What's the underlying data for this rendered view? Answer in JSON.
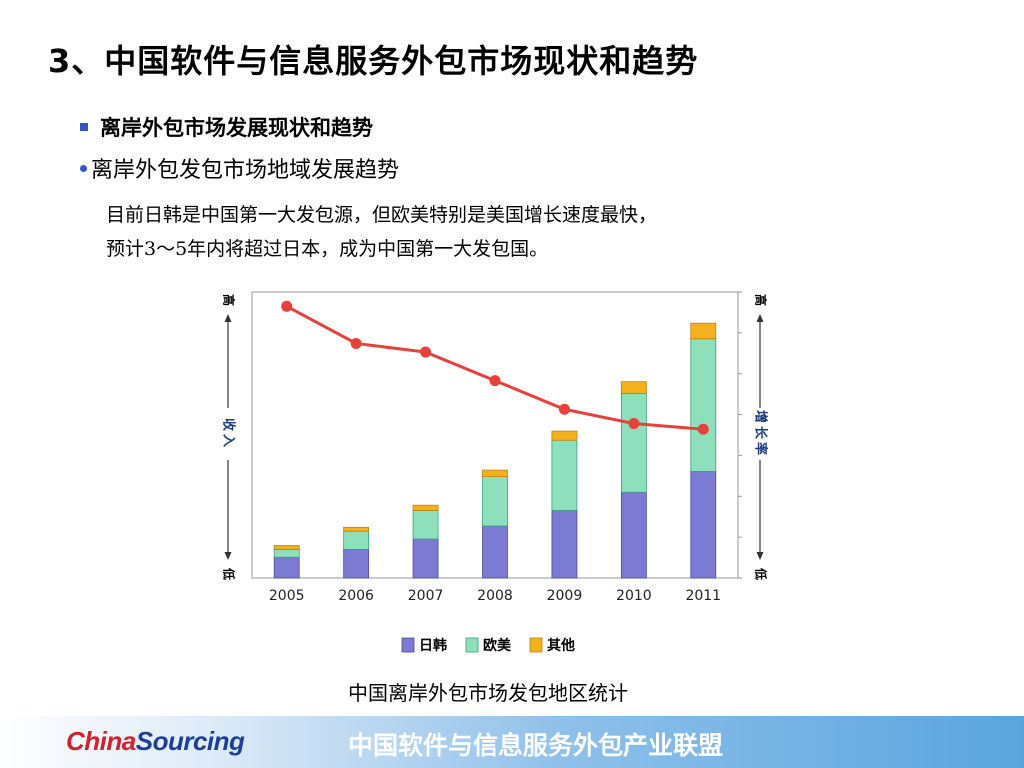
{
  "title": "3、中国软件与信息服务外包市场现状和趋势",
  "bullet1": "离岸外包市场发展现状和趋势",
  "bullet2": "离岸外包发包市场地域发展趋势",
  "description": [
    "目前日韩是中国第一大发包源，但欧美特别是美国增长速度最快，",
    "预计3～5年内将超过日本，成为中国第一大发包国。"
  ],
  "caption": "中国离岸外包市场发包地区统计",
  "footer": {
    "logo_part1": "China",
    "logo_part2": "Sourcing",
    "org_name": "中国软件与信息服务外包产业联盟"
  },
  "colors": {
    "japan_korea": "#7b7bd3",
    "europe_us": "#8ee0bd",
    "other": "#f5b01f",
    "growth_line": "#e8403a"
  },
  "chart_data": {
    "type": "bar",
    "stacked": true,
    "categories": [
      "2005",
      "2006",
      "2007",
      "2008",
      "2009",
      "2010",
      "2011"
    ],
    "series": [
      {
        "name": "日韩",
        "values": [
          8,
          11,
          15,
          20,
          26,
          33,
          41
        ]
      },
      {
        "name": "欧美",
        "values": [
          3,
          7,
          11,
          19,
          27,
          38,
          51
        ]
      },
      {
        "name": "其他",
        "values": [
          1.5,
          1.5,
          2,
          2.5,
          3.5,
          4.5,
          6
        ]
      }
    ],
    "line": {
      "name": "增长率",
      "values": [
        95,
        82,
        79,
        69,
        59,
        54,
        52
      ]
    },
    "left_axis": {
      "label": "收入",
      "top": "高",
      "bottom": "低"
    },
    "right_axis": {
      "label": "增长率",
      "top": "高",
      "bottom": "低"
    },
    "ylim": [
      0,
      100
    ],
    "legend_position": "bottom",
    "grid": false
  }
}
